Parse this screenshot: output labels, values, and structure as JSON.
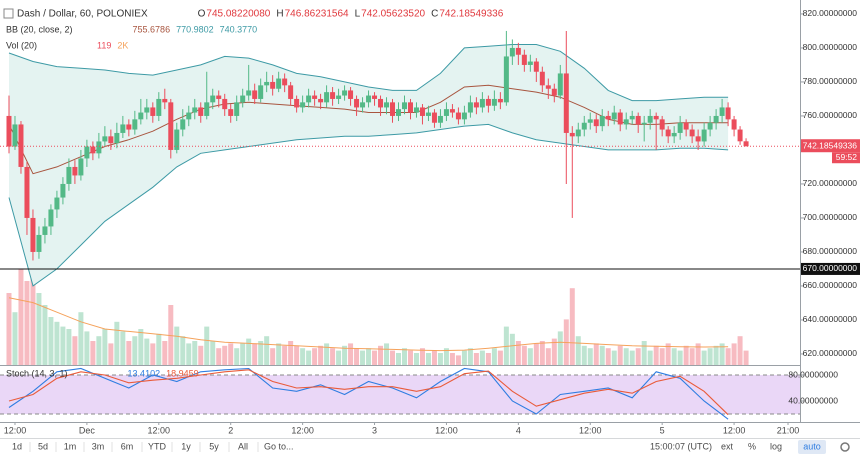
{
  "chart_data": [
    {
      "type": "candlestick",
      "legend": {
        "title": "Dash / Dollar, 60, POLONIEX",
        "ohlc_labels": [
          "O",
          "H",
          "L",
          "C"
        ],
        "ohlc_values": [
          "745.08220080",
          "746.86231564",
          "742.05623520",
          "742.18549336"
        ],
        "bb": "BB (20, close, 2)",
        "bb_values": [
          "755.6786",
          "770.9802",
          "740.3770"
        ],
        "vol": "Vol (20)",
        "vol_values": [
          "119",
          "2K"
        ]
      },
      "up_color": "#53b987",
      "down_color": "#eb4d5c",
      "band_color": "#3d9aa5",
      "band_fill": "#e4f3f1",
      "basis_color": "#a8553f",
      "volume_ma_color": "#f5a25b",
      "xlim": [
        -1.5,
        132
      ],
      "ylim": [
        613.5,
        828.2
      ],
      "volume_lim": [
        0,
        5000
      ],
      "grid": false,
      "xticks": [
        {
          "value": 1,
          "label": "12:00"
        },
        {
          "value": 13,
          "label": "Dec"
        },
        {
          "value": 25,
          "label": "12:00"
        },
        {
          "value": 37,
          "label": "2"
        },
        {
          "value": 49,
          "label": "12:00"
        },
        {
          "value": 61,
          "label": "3"
        },
        {
          "value": 73,
          "label": "12:00"
        },
        {
          "value": 85,
          "label": "4"
        },
        {
          "value": 97,
          "label": "12:00"
        },
        {
          "value": 109,
          "label": "5"
        },
        {
          "value": 121,
          "label": "12:00"
        },
        {
          "value": 130,
          "label": "21:00"
        }
      ],
      "yticks": [
        {
          "value": 820,
          "label": "820.00000000"
        },
        {
          "value": 800,
          "label": "800.00000000"
        },
        {
          "value": 780,
          "label": "780.00000000"
        },
        {
          "value": 760,
          "label": "760.00000000"
        },
        {
          "value": 740,
          "label": "740.00000000"
        },
        {
          "value": 720,
          "label": "720.00000000"
        },
        {
          "value": 700,
          "label": "700.00000000"
        },
        {
          "value": 680,
          "label": "680.00000000"
        },
        {
          "value": 660,
          "label": "660.00000000"
        },
        {
          "value": 640,
          "label": "640.00000000"
        },
        {
          "value": 620,
          "label": "620.00000000"
        }
      ],
      "level": {
        "value": 670,
        "label": "670.00000000"
      },
      "last_price": {
        "value": 742.18549336,
        "label": "742.18549336"
      },
      "countdown": "59:52",
      "ohlc": [
        [
          760,
          772,
          738,
          742
        ],
        [
          742,
          760,
          740,
          755
        ],
        [
          755,
          757,
          726,
          730
        ],
        [
          730,
          733,
          690,
          700
        ],
        [
          700,
          705,
          675,
          680
        ],
        [
          680,
          695,
          676,
          690
        ],
        [
          690,
          700,
          685,
          695
        ],
        [
          695,
          708,
          690,
          705
        ],
        [
          705,
          716,
          700,
          712
        ],
        [
          712,
          724,
          708,
          720
        ],
        [
          720,
          735,
          716,
          730
        ],
        [
          730,
          734,
          720,
          725
        ],
        [
          725,
          740,
          722,
          735
        ],
        [
          735,
          746,
          730,
          742
        ],
        [
          742,
          745,
          734,
          738
        ],
        [
          738,
          750,
          735,
          745
        ],
        [
          745,
          754,
          742,
          748
        ],
        [
          748,
          752,
          740,
          744
        ],
        [
          744,
          756,
          741,
          750
        ],
        [
          750,
          760,
          747,
          755
        ],
        [
          755,
          758,
          748,
          752
        ],
        [
          752,
          763,
          749,
          758
        ],
        [
          758,
          770,
          755,
          762
        ],
        [
          762,
          770,
          758,
          765
        ],
        [
          765,
          768,
          756,
          760
        ],
        [
          760,
          774,
          757,
          770
        ],
        [
          770,
          776,
          764,
          768
        ],
        [
          768,
          770,
          735,
          740
        ],
        [
          740,
          756,
          738,
          752
        ],
        [
          752,
          764,
          748,
          758
        ],
        [
          758,
          766,
          754,
          762
        ],
        [
          762,
          770,
          758,
          765
        ],
        [
          765,
          768,
          756,
          760
        ],
        [
          760,
          786,
          758,
          768
        ],
        [
          768,
          776,
          764,
          772
        ],
        [
          772,
          775,
          765,
          770
        ],
        [
          770,
          773,
          760,
          764
        ],
        [
          764,
          767,
          756,
          760
        ],
        [
          760,
          772,
          757,
          768
        ],
        [
          768,
          776,
          765,
          772
        ],
        [
          772,
          790,
          769,
          775
        ],
        [
          775,
          779,
          767,
          770
        ],
        [
          770,
          782,
          768,
          778
        ],
        [
          778,
          786,
          774,
          780
        ],
        [
          780,
          784,
          772,
          776
        ],
        [
          776,
          786,
          774,
          782
        ],
        [
          782,
          785,
          774,
          778
        ],
        [
          778,
          780,
          766,
          770
        ],
        [
          770,
          772,
          762,
          765
        ],
        [
          765,
          772,
          762,
          768
        ],
        [
          768,
          776,
          765,
          772
        ],
        [
          772,
          775,
          766,
          770
        ],
        [
          770,
          773,
          764,
          768
        ],
        [
          768,
          778,
          765,
          774
        ],
        [
          774,
          777,
          766,
          770
        ],
        [
          770,
          776,
          767,
          772
        ],
        [
          772,
          778,
          769,
          775
        ],
        [
          775,
          777,
          766,
          770
        ],
        [
          770,
          772,
          760,
          765
        ],
        [
          765,
          771,
          762,
          768
        ],
        [
          768,
          775,
          765,
          772
        ],
        [
          772,
          774,
          766,
          770
        ],
        [
          770,
          772,
          760,
          765
        ],
        [
          765,
          771,
          761,
          768
        ],
        [
          768,
          770,
          756,
          760
        ],
        [
          760,
          768,
          757,
          764
        ],
        [
          764,
          772,
          761,
          768
        ],
        [
          768,
          770,
          758,
          762
        ],
        [
          762,
          768,
          759,
          765
        ],
        [
          765,
          767,
          755,
          760
        ],
        [
          760,
          766,
          757,
          762
        ],
        [
          762,
          764,
          753,
          756
        ],
        [
          756,
          764,
          753,
          760
        ],
        [
          760,
          768,
          757,
          764
        ],
        [
          764,
          767,
          759,
          762
        ],
        [
          762,
          765,
          755,
          758
        ],
        [
          758,
          766,
          755,
          762
        ],
        [
          762,
          772,
          759,
          768
        ],
        [
          768,
          771,
          761,
          765
        ],
        [
          765,
          774,
          762,
          770
        ],
        [
          770,
          772,
          762,
          766
        ],
        [
          766,
          775,
          763,
          770
        ],
        [
          770,
          774,
          764,
          768
        ],
        [
          768,
          810,
          766,
          795
        ],
        [
          795,
          805,
          790,
          800
        ],
        [
          800,
          803,
          790,
          796
        ],
        [
          796,
          799,
          786,
          790
        ],
        [
          790,
          796,
          786,
          792
        ],
        [
          792,
          794,
          780,
          786
        ],
        [
          786,
          789,
          774,
          778
        ],
        [
          778,
          782,
          770,
          776
        ],
        [
          776,
          779,
          768,
          772
        ],
        [
          772,
          790,
          770,
          785
        ],
        [
          785,
          810,
          720,
          750
        ],
        [
          750,
          754,
          700,
          748
        ],
        [
          748,
          756,
          744,
          752
        ],
        [
          752,
          760,
          748,
          756
        ],
        [
          756,
          762,
          752,
          758
        ],
        [
          758,
          761,
          750,
          754
        ],
        [
          754,
          764,
          751,
          760
        ],
        [
          760,
          763,
          754,
          758
        ],
        [
          758,
          766,
          755,
          762
        ],
        [
          762,
          764,
          751,
          755
        ],
        [
          755,
          762,
          752,
          758
        ],
        [
          758,
          763,
          755,
          760
        ],
        [
          760,
          762,
          750,
          755
        ],
        [
          755,
          760,
          745,
          756
        ],
        [
          756,
          764,
          752,
          760
        ],
        [
          760,
          762,
          740,
          758
        ],
        [
          758,
          760,
          748,
          752
        ],
        [
          752,
          754,
          744,
          748
        ],
        [
          748,
          754,
          744,
          750
        ],
        [
          750,
          760,
          746,
          756
        ],
        [
          756,
          758,
          748,
          752
        ],
        [
          752,
          755,
          744,
          748
        ],
        [
          748,
          752,
          740,
          745
        ],
        [
          745,
          756,
          742,
          752
        ],
        [
          752,
          760,
          748,
          756
        ],
        [
          756,
          764,
          752,
          760
        ],
        [
          760,
          770,
          756,
          765
        ],
        [
          765,
          768,
          754,
          758
        ],
        [
          758,
          760,
          748,
          752
        ],
        [
          752,
          754,
          743,
          745.0822008
        ],
        [
          745.0822008,
          746.86231564,
          742.0562352,
          742.18549336
        ]
      ],
      "volume": [
        3000,
        2200,
        4000,
        3500,
        3800,
        3000,
        2500,
        2000,
        1800,
        1600,
        1500,
        1200,
        2200,
        1400,
        1000,
        1200,
        1500,
        900,
        1800,
        1400,
        1000,
        1200,
        1500,
        1100,
        900,
        1300,
        1000,
        2500,
        1600,
        1200,
        900,
        1000,
        800,
        1600,
        1000,
        700,
        800,
        900,
        700,
        900,
        1100,
        900,
        1000,
        1200,
        700,
        900,
        800,
        1000,
        800,
        700,
        600,
        700,
        800,
        900,
        700,
        600,
        800,
        900,
        700,
        600,
        700,
        600,
        800,
        900,
        600,
        500,
        700,
        600,
        500,
        700,
        500,
        600,
        500,
        700,
        500,
        400,
        600,
        700,
        500,
        600,
        500,
        700,
        600,
        1600,
        1300,
        1000,
        800,
        700,
        900,
        1000,
        700,
        1100,
        1400,
        1900,
        3200,
        1200,
        800,
        700,
        900,
        800,
        700,
        600,
        800,
        700,
        600,
        700,
        1000,
        600,
        800,
        700,
        900,
        700,
        600,
        800,
        700,
        900,
        600,
        700,
        800,
        900,
        700,
        900,
        1200,
        600
      ],
      "bands": {
        "x": [
          0,
          4,
          8,
          12,
          16,
          20,
          24,
          28,
          32,
          36,
          40,
          44,
          48,
          52,
          56,
          60,
          64,
          68,
          72,
          76,
          80,
          84,
          88,
          92,
          96,
          100,
          104,
          108,
          112,
          116,
          120
        ],
        "upper": [
          797,
          792,
          789,
          788,
          787,
          785,
          784,
          787,
          790,
          795,
          794,
          790,
          785,
          783,
          780,
          777,
          775,
          775,
          785,
          800,
          801,
          802,
          802,
          798,
          788,
          775,
          769,
          769,
          770,
          771,
          771
        ],
        "basis": [
          755,
          726,
          730,
          736,
          742,
          746,
          751,
          758,
          764,
          767,
          768,
          767,
          766,
          765,
          764,
          762,
          762,
          762,
          768,
          777,
          778,
          776,
          774,
          771,
          765,
          758,
          755,
          755,
          756,
          756,
          756
        ],
        "lower": [
          712,
          660,
          670,
          684,
          698,
          708,
          718,
          730,
          738,
          740,
          742,
          744,
          746,
          747,
          748,
          748,
          749,
          750,
          752,
          754,
          755,
          750,
          746,
          744,
          742,
          740,
          740,
          740,
          741,
          741,
          740
        ]
      },
      "volume_ma": [
        2800,
        2600,
        2200,
        1800,
        1500,
        1400,
        1300,
        1200,
        1050,
        950,
        900,
        850,
        800,
        750,
        700,
        680,
        650,
        620,
        600,
        620,
        700,
        800,
        900,
        950,
        900,
        850,
        800,
        780,
        760,
        750,
        760
      ]
    },
    {
      "type": "stochastic",
      "legend": {
        "title": "Stoch (14, 3, 1)",
        "values": [
          "13.4102",
          "18.9459"
        ]
      },
      "xlim": [
        -1.5,
        132
      ],
      "ylim": [
        7.7,
        95.4
      ],
      "band": [
        20,
        80
      ],
      "band_fill": "#ead7f7",
      "yticks": [
        {
          "value": 80,
          "label": "80.00000000"
        },
        {
          "value": 40,
          "label": "40.00000000"
        }
      ],
      "x": [
        0,
        4,
        8,
        12,
        16,
        20,
        24,
        28,
        32,
        36,
        40,
        44,
        48,
        52,
        56,
        60,
        64,
        68,
        72,
        76,
        80,
        84,
        88,
        92,
        96,
        100,
        104,
        108,
        112,
        116,
        120
      ],
      "series": [
        {
          "color": "#2f7de1",
          "values": [
            30,
            55,
            85,
            90,
            75,
            60,
            80,
            70,
            85,
            88,
            90,
            60,
            55,
            65,
            50,
            70,
            60,
            45,
            70,
            90,
            85,
            40,
            20,
            50,
            55,
            60,
            45,
            85,
            75,
            40,
            12
          ]
        },
        {
          "color": "#e95b3a",
          "values": [
            40,
            50,
            75,
            85,
            80,
            68,
            72,
            75,
            80,
            85,
            88,
            70,
            60,
            62,
            58,
            62,
            62,
            55,
            62,
            82,
            86,
            55,
            32,
            42,
            52,
            58,
            52,
            70,
            78,
            55,
            19
          ]
        }
      ]
    }
  ],
  "toolbar": {
    "ranges": [
      "1d",
      "5d",
      "1m",
      "3m",
      "6m",
      "YTD",
      "1y",
      "5y",
      "All"
    ],
    "goto": "Go to...",
    "time": "15:00:07 (UTC)",
    "options": [
      "ext",
      "%",
      "log",
      "auto"
    ]
  }
}
